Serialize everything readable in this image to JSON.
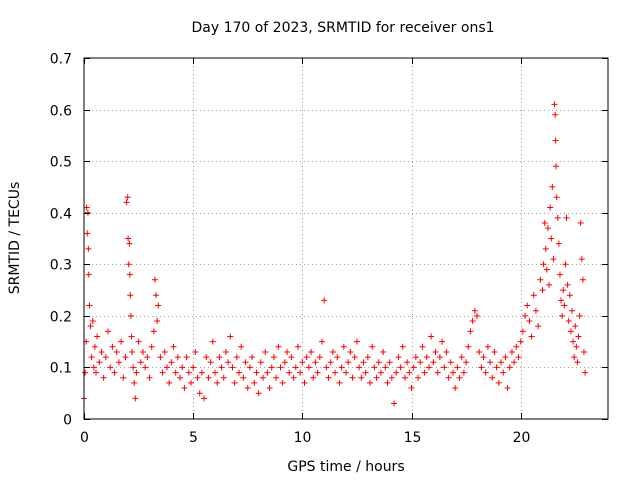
{
  "chart_data": {
    "type": "scatter",
    "title": "Day 170 of 2023, SRMTID for receiver ons1",
    "xlabel": "GPS time / hours",
    "ylabel": "SRMTID / TECUs",
    "xlim": [
      0,
      24
    ],
    "ylim": [
      0,
      0.7
    ],
    "x_ticks": [
      0,
      5,
      10,
      15,
      20
    ],
    "x_tick_labels": [
      "0",
      "5",
      "10",
      "15",
      "20"
    ],
    "y_ticks": [
      0,
      0.1,
      0.2,
      0.3,
      0.4,
      0.5,
      0.6,
      0.7
    ],
    "y_tick_labels": [
      "0",
      "0.1",
      "0.2",
      "0.3",
      "0.4",
      "0.5",
      "0.6",
      "0.7"
    ],
    "grid": true,
    "marker": "+",
    "color": "#ff0000",
    "series": [
      {
        "name": "SRMTID",
        "points": [
          [
            0.0,
            0.04
          ],
          [
            0.05,
            0.09
          ],
          [
            0.1,
            0.15
          ],
          [
            0.12,
            0.41
          ],
          [
            0.15,
            0.36
          ],
          [
            0.18,
            0.4
          ],
          [
            0.2,
            0.33
          ],
          [
            0.22,
            0.28
          ],
          [
            0.25,
            0.22
          ],
          [
            0.3,
            0.18
          ],
          [
            0.35,
            0.12
          ],
          [
            0.4,
            0.19
          ],
          [
            0.45,
            0.1
          ],
          [
            0.5,
            0.14
          ],
          [
            0.55,
            0.09
          ],
          [
            0.6,
            0.16
          ],
          [
            0.7,
            0.11
          ],
          [
            0.8,
            0.13
          ],
          [
            0.9,
            0.08
          ],
          [
            1.0,
            0.12
          ],
          [
            1.1,
            0.17
          ],
          [
            1.2,
            0.1
          ],
          [
            1.3,
            0.14
          ],
          [
            1.4,
            0.09
          ],
          [
            1.5,
            0.13
          ],
          [
            1.6,
            0.11
          ],
          [
            1.7,
            0.15
          ],
          [
            1.8,
            0.08
          ],
          [
            1.9,
            0.12
          ],
          [
            1.95,
            0.42
          ],
          [
            2.0,
            0.43
          ],
          [
            2.02,
            0.35
          ],
          [
            2.05,
            0.3
          ],
          [
            2.08,
            0.34
          ],
          [
            2.1,
            0.28
          ],
          [
            2.12,
            0.24
          ],
          [
            2.15,
            0.2
          ],
          [
            2.18,
            0.16
          ],
          [
            2.2,
            0.13
          ],
          [
            2.25,
            0.1
          ],
          [
            2.3,
            0.07
          ],
          [
            2.35,
            0.04
          ],
          [
            2.4,
            0.09
          ],
          [
            2.5,
            0.15
          ],
          [
            2.6,
            0.11
          ],
          [
            2.7,
            0.13
          ],
          [
            2.8,
            0.1
          ],
          [
            2.9,
            0.12
          ],
          [
            3.0,
            0.08
          ],
          [
            3.1,
            0.14
          ],
          [
            3.2,
            0.17
          ],
          [
            3.25,
            0.27
          ],
          [
            3.3,
            0.24
          ],
          [
            3.35,
            0.19
          ],
          [
            3.4,
            0.22
          ],
          [
            3.5,
            0.12
          ],
          [
            3.6,
            0.09
          ],
          [
            3.7,
            0.13
          ],
          [
            3.8,
            0.1
          ],
          [
            3.9,
            0.07
          ],
          [
            4.0,
            0.11
          ],
          [
            4.1,
            0.14
          ],
          [
            4.2,
            0.09
          ],
          [
            4.3,
            0.12
          ],
          [
            4.4,
            0.08
          ],
          [
            4.5,
            0.1
          ],
          [
            4.6,
            0.06
          ],
          [
            4.7,
            0.12
          ],
          [
            4.8,
            0.09
          ],
          [
            4.9,
            0.07
          ],
          [
            5.0,
            0.1
          ],
          [
            5.1,
            0.13
          ],
          [
            5.2,
            0.08
          ],
          [
            5.3,
            0.05
          ],
          [
            5.4,
            0.09
          ],
          [
            5.5,
            0.04
          ],
          [
            5.6,
            0.12
          ],
          [
            5.7,
            0.08
          ],
          [
            5.8,
            0.11
          ],
          [
            5.9,
            0.15
          ],
          [
            6.0,
            0.09
          ],
          [
            6.1,
            0.07
          ],
          [
            6.2,
            0.12
          ],
          [
            6.3,
            0.1
          ],
          [
            6.4,
            0.08
          ],
          [
            6.5,
            0.13
          ],
          [
            6.6,
            0.11
          ],
          [
            6.7,
            0.16
          ],
          [
            6.8,
            0.1
          ],
          [
            6.9,
            0.07
          ],
          [
            7.0,
            0.12
          ],
          [
            7.1,
            0.09
          ],
          [
            7.2,
            0.14
          ],
          [
            7.3,
            0.08
          ],
          [
            7.4,
            0.11
          ],
          [
            7.5,
            0.06
          ],
          [
            7.6,
            0.1
          ],
          [
            7.7,
            0.12
          ],
          [
            7.8,
            0.07
          ],
          [
            7.9,
            0.09
          ],
          [
            8.0,
            0.05
          ],
          [
            8.1,
            0.11
          ],
          [
            8.2,
            0.08
          ],
          [
            8.3,
            0.13
          ],
          [
            8.4,
            0.09
          ],
          [
            8.5,
            0.06
          ],
          [
            8.6,
            0.1
          ],
          [
            8.7,
            0.12
          ],
          [
            8.8,
            0.08
          ],
          [
            8.9,
            0.14
          ],
          [
            9.0,
            0.1
          ],
          [
            9.1,
            0.07
          ],
          [
            9.2,
            0.11
          ],
          [
            9.3,
            0.13
          ],
          [
            9.4,
            0.09
          ],
          [
            9.5,
            0.12
          ],
          [
            9.6,
            0.08
          ],
          [
            9.7,
            0.1
          ],
          [
            9.8,
            0.14
          ],
          [
            9.9,
            0.09
          ],
          [
            10.0,
            0.11
          ],
          [
            10.1,
            0.07
          ],
          [
            10.2,
            0.12
          ],
          [
            10.3,
            0.1
          ],
          [
            10.4,
            0.13
          ],
          [
            10.5,
            0.08
          ],
          [
            10.6,
            0.11
          ],
          [
            10.7,
            0.09
          ],
          [
            10.8,
            0.12
          ],
          [
            10.9,
            0.15
          ],
          [
            11.0,
            0.23
          ],
          [
            11.1,
            0.1
          ],
          [
            11.2,
            0.08
          ],
          [
            11.3,
            0.11
          ],
          [
            11.4,
            0.13
          ],
          [
            11.5,
            0.09
          ],
          [
            11.6,
            0.12
          ],
          [
            11.7,
            0.07
          ],
          [
            11.8,
            0.1
          ],
          [
            11.9,
            0.14
          ],
          [
            12.0,
            0.09
          ],
          [
            12.1,
            0.11
          ],
          [
            12.2,
            0.13
          ],
          [
            12.3,
            0.08
          ],
          [
            12.4,
            0.12
          ],
          [
            12.5,
            0.15
          ],
          [
            12.6,
            0.1
          ],
          [
            12.7,
            0.08
          ],
          [
            12.8,
            0.11
          ],
          [
            12.9,
            0.09
          ],
          [
            13.0,
            0.12
          ],
          [
            13.1,
            0.07
          ],
          [
            13.2,
            0.14
          ],
          [
            13.3,
            0.1
          ],
          [
            13.4,
            0.08
          ],
          [
            13.5,
            0.11
          ],
          [
            13.6,
            0.09
          ],
          [
            13.7,
            0.13
          ],
          [
            13.8,
            0.1
          ],
          [
            13.9,
            0.07
          ],
          [
            14.0,
            0.11
          ],
          [
            14.1,
            0.08
          ],
          [
            14.2,
            0.03
          ],
          [
            14.3,
            0.09
          ],
          [
            14.4,
            0.12
          ],
          [
            14.5,
            0.1
          ],
          [
            14.6,
            0.14
          ],
          [
            14.7,
            0.08
          ],
          [
            14.8,
            0.11
          ],
          [
            14.9,
            0.09
          ],
          [
            15.0,
            0.06
          ],
          [
            15.1,
            0.1
          ],
          [
            15.2,
            0.12
          ],
          [
            15.3,
            0.08
          ],
          [
            15.4,
            0.11
          ],
          [
            15.5,
            0.14
          ],
          [
            15.6,
            0.09
          ],
          [
            15.7,
            0.12
          ],
          [
            15.8,
            0.1
          ],
          [
            15.9,
            0.16
          ],
          [
            16.0,
            0.11
          ],
          [
            16.1,
            0.13
          ],
          [
            16.2,
            0.09
          ],
          [
            16.3,
            0.12
          ],
          [
            16.4,
            0.15
          ],
          [
            16.5,
            0.1
          ],
          [
            16.6,
            0.13
          ],
          [
            16.7,
            0.08
          ],
          [
            16.8,
            0.11
          ],
          [
            16.9,
            0.09
          ],
          [
            17.0,
            0.06
          ],
          [
            17.1,
            0.1
          ],
          [
            17.2,
            0.08
          ],
          [
            17.3,
            0.12
          ],
          [
            17.4,
            0.09
          ],
          [
            17.5,
            0.11
          ],
          [
            17.6,
            0.14
          ],
          [
            17.7,
            0.17
          ],
          [
            17.8,
            0.19
          ],
          [
            17.9,
            0.21
          ],
          [
            18.0,
            0.2
          ],
          [
            18.1,
            0.13
          ],
          [
            18.2,
            0.1
          ],
          [
            18.3,
            0.12
          ],
          [
            18.4,
            0.09
          ],
          [
            18.5,
            0.14
          ],
          [
            18.6,
            0.11
          ],
          [
            18.7,
            0.08
          ],
          [
            18.8,
            0.13
          ],
          [
            18.9,
            0.1
          ],
          [
            19.0,
            0.07
          ],
          [
            19.1,
            0.11
          ],
          [
            19.2,
            0.09
          ],
          [
            19.3,
            0.12
          ],
          [
            19.4,
            0.06
          ],
          [
            19.5,
            0.1
          ],
          [
            19.6,
            0.13
          ],
          [
            19.7,
            0.11
          ],
          [
            19.8,
            0.14
          ],
          [
            19.9,
            0.12
          ],
          [
            20.0,
            0.15
          ],
          [
            20.1,
            0.17
          ],
          [
            20.2,
            0.2
          ],
          [
            20.3,
            0.22
          ],
          [
            20.4,
            0.19
          ],
          [
            20.5,
            0.16
          ],
          [
            20.6,
            0.24
          ],
          [
            20.7,
            0.21
          ],
          [
            20.8,
            0.18
          ],
          [
            20.9,
            0.27
          ],
          [
            21.0,
            0.25
          ],
          [
            21.05,
            0.3
          ],
          [
            21.1,
            0.38
          ],
          [
            21.15,
            0.33
          ],
          [
            21.2,
            0.29
          ],
          [
            21.25,
            0.37
          ],
          [
            21.3,
            0.26
          ],
          [
            21.35,
            0.41
          ],
          [
            21.4,
            0.35
          ],
          [
            21.45,
            0.45
          ],
          [
            21.5,
            0.31
          ],
          [
            21.55,
            0.61
          ],
          [
            21.58,
            0.59
          ],
          [
            21.6,
            0.54
          ],
          [
            21.62,
            0.49
          ],
          [
            21.65,
            0.43
          ],
          [
            21.7,
            0.39
          ],
          [
            21.75,
            0.34
          ],
          [
            21.8,
            0.28
          ],
          [
            21.85,
            0.23
          ],
          [
            21.9,
            0.2
          ],
          [
            21.95,
            0.25
          ],
          [
            22.0,
            0.22
          ],
          [
            22.05,
            0.3
          ],
          [
            22.1,
            0.39
          ],
          [
            22.15,
            0.26
          ],
          [
            22.2,
            0.19
          ],
          [
            22.25,
            0.24
          ],
          [
            22.3,
            0.17
          ],
          [
            22.35,
            0.21
          ],
          [
            22.4,
            0.15
          ],
          [
            22.45,
            0.12
          ],
          [
            22.5,
            0.18
          ],
          [
            22.55,
            0.14
          ],
          [
            22.6,
            0.11
          ],
          [
            22.65,
            0.16
          ],
          [
            22.7,
            0.2
          ],
          [
            22.75,
            0.38
          ],
          [
            22.8,
            0.31
          ],
          [
            22.85,
            0.27
          ],
          [
            22.9,
            0.13
          ],
          [
            22.95,
            0.09
          ]
        ]
      }
    ]
  }
}
